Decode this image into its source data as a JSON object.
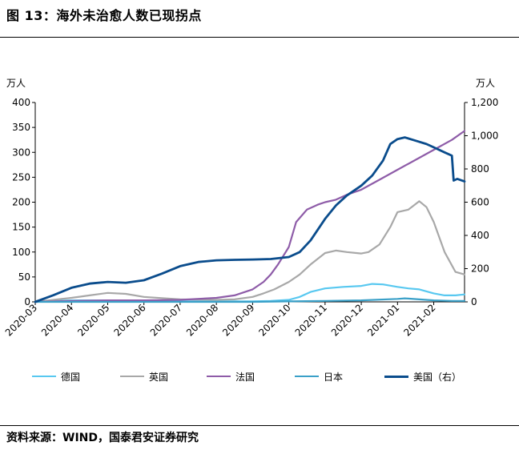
{
  "header": {
    "title": "图 13：海外未治愈人数已现拐点"
  },
  "footer": {
    "source": "资料来源：WIND，国泰君安证券研究"
  },
  "chart_data": {
    "type": "line",
    "left_axis": {
      "unit": "万人",
      "ylim": [
        0,
        400
      ],
      "ticks": [
        "0",
        "50",
        "100",
        "150",
        "200",
        "250",
        "300",
        "350",
        "400"
      ]
    },
    "right_axis": {
      "unit": "万人",
      "ylim": [
        0,
        1200
      ],
      "ticks": [
        "0",
        "200",
        "400",
        "600",
        "800",
        "1,000",
        "1,200"
      ]
    },
    "x_ticks": [
      "2020-03",
      "2020-04",
      "2020-05",
      "2020-06",
      "2020-07",
      "2020-08",
      "2020-09",
      "2020-10",
      "2020-11",
      "2020-12",
      "2021-01",
      "2021-02"
    ],
    "xlim": [
      0,
      11.85
    ],
    "grid": false,
    "legend_position": "bottom",
    "series": [
      {
        "name": "德国",
        "axis": "left",
        "color": "#58c8f0",
        "x": [
          0,
          1,
          2,
          3,
          4,
          5,
          6,
          6.5,
          7,
          7.3,
          7.6,
          8,
          8.5,
          9,
          9.3,
          9.6,
          10,
          10.3,
          10.6,
          11,
          11.3,
          11.6,
          11.85
        ],
        "y": [
          0,
          3,
          3,
          2,
          1,
          1,
          1,
          2,
          4,
          10,
          20,
          27,
          30,
          32,
          36,
          35,
          30,
          27,
          25,
          17,
          13,
          13,
          15
        ]
      },
      {
        "name": "英国",
        "axis": "left",
        "color": "#a8a8a8",
        "x": [
          0,
          1,
          1.5,
          2,
          2.5,
          3,
          4,
          5,
          5.5,
          6,
          6.3,
          6.6,
          7,
          7.3,
          7.6,
          8,
          8.3,
          8.6,
          9,
          9.2,
          9.5,
          9.8,
          10,
          10.3,
          10.6,
          10.8,
          11,
          11.3,
          11.6,
          11.85
        ],
        "y": [
          0,
          8,
          13,
          18,
          16,
          10,
          5,
          4,
          5,
          10,
          17,
          25,
          40,
          55,
          75,
          98,
          103,
          100,
          97,
          100,
          115,
          150,
          180,
          185,
          202,
          190,
          160,
          100,
          60,
          55
        ]
      },
      {
        "name": "法国",
        "axis": "left",
        "color": "#8e5ca8",
        "x": [
          0,
          1,
          2,
          3,
          4,
          5,
          5.5,
          6,
          6.3,
          6.5,
          6.7,
          7,
          7.2,
          7.5,
          7.8,
          8,
          8.3,
          8.6,
          9,
          9.5,
          10,
          10.5,
          11,
          11.5,
          11.85
        ],
        "y": [
          0,
          2,
          3,
          3,
          4,
          8,
          13,
          25,
          40,
          55,
          75,
          110,
          160,
          185,
          195,
          200,
          205,
          215,
          225,
          245,
          265,
          285,
          305,
          325,
          343
        ]
      },
      {
        "name": "日本",
        "axis": "left",
        "color": "#3aa0c8",
        "x": [
          0,
          1,
          2,
          3,
          4,
          5,
          6,
          7,
          8,
          9,
          10,
          10.2,
          10.6,
          11,
          11.5,
          11.85
        ],
        "y": [
          0,
          0,
          0,
          0,
          0,
          0,
          0,
          1,
          2,
          3,
          6,
          7,
          5,
          3,
          2,
          2
        ]
      },
      {
        "name": "美国（右）",
        "axis": "right",
        "color": "#0a4c8c",
        "x": [
          0,
          0.5,
          1,
          1.5,
          2,
          2.5,
          3,
          3.5,
          4,
          4.5,
          5,
          5.5,
          6,
          6.5,
          7,
          7.3,
          7.6,
          8,
          8.3,
          8.6,
          9,
          9.3,
          9.6,
          9.8,
          10,
          10.2,
          10.5,
          10.8,
          11,
          11.3,
          11.5,
          11.55,
          11.65,
          11.85
        ],
        "y": [
          0,
          40,
          85,
          110,
          120,
          115,
          130,
          170,
          215,
          240,
          250,
          253,
          255,
          258,
          270,
          300,
          370,
          500,
          580,
          640,
          700,
          760,
          850,
          950,
          980,
          990,
          970,
          950,
          930,
          900,
          880,
          730,
          740,
          725
        ]
      }
    ]
  }
}
